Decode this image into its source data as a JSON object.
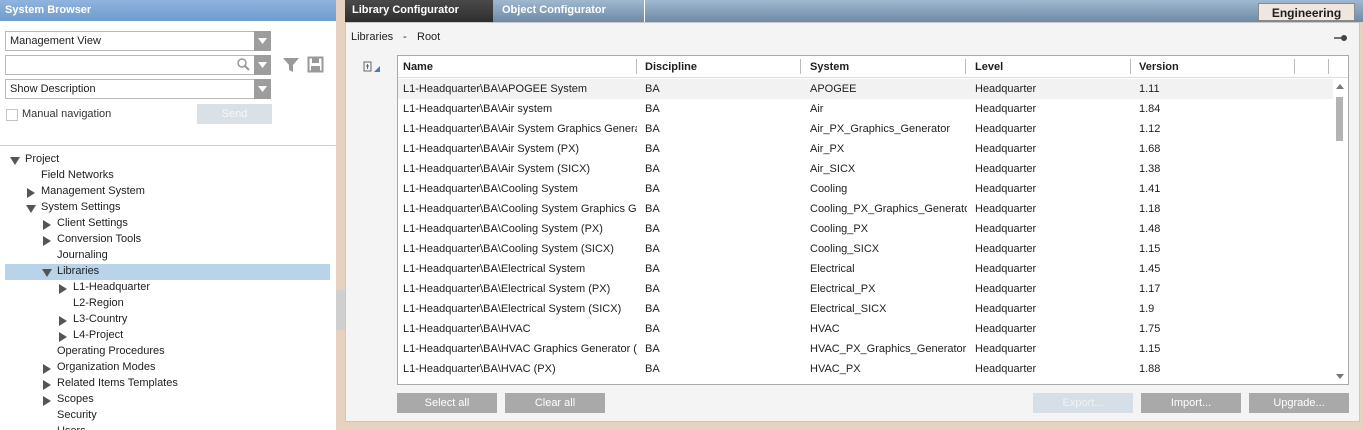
{
  "left_panel": {
    "title": "System Browser",
    "view_select": "Management View",
    "description_select": "Show Description",
    "manual_navigation": "Manual navigation",
    "send_button": "Send",
    "tree": {
      "label": "Project",
      "expanded": true,
      "children": [
        {
          "label": "Field Networks"
        },
        {
          "label": "Management System",
          "expanded": false
        },
        {
          "label": "System Settings",
          "expanded": true,
          "children": [
            {
              "label": "Client Settings",
              "expanded": false
            },
            {
              "label": "Conversion Tools",
              "expanded": false
            },
            {
              "label": "Journaling"
            },
            {
              "label": "Libraries",
              "expanded": true,
              "selected": true,
              "children": [
                {
                  "label": "L1-Headquarter",
                  "expanded": false
                },
                {
                  "label": "L2-Region"
                },
                {
                  "label": "L3-Country",
                  "expanded": false
                },
                {
                  "label": "L4-Project",
                  "expanded": false
                }
              ]
            },
            {
              "label": "Operating Procedures"
            },
            {
              "label": "Organization Modes",
              "expanded": false
            },
            {
              "label": "Related Items Templates",
              "expanded": false
            },
            {
              "label": "Scopes",
              "expanded": false
            },
            {
              "label": "Security"
            },
            {
              "label": "Users"
            }
          ]
        }
      ]
    }
  },
  "tabs": [
    "Library Configurator",
    "Object Configurator"
  ],
  "mode": "Engineering",
  "breadcrumb": [
    "Libraries",
    "-",
    "Root"
  ],
  "table": {
    "columns": [
      "Name",
      "Discipline",
      "System",
      "Level",
      "Version"
    ],
    "rows": [
      [
        "L1-Headquarter\\BA\\APOGEE System",
        "BA",
        "APOGEE",
        "Headquarter",
        "1.11"
      ],
      [
        "L1-Headquarter\\BA\\Air system",
        "BA",
        "Air",
        "Headquarter",
        "1.84"
      ],
      [
        "L1-Headquarter\\BA\\Air System Graphics Genera",
        "BA",
        "Air_PX_Graphics_Generator",
        "Headquarter",
        "1.12"
      ],
      [
        "L1-Headquarter\\BA\\Air System (PX)",
        "BA",
        "Air_PX",
        "Headquarter",
        "1.68"
      ],
      [
        "L1-Headquarter\\BA\\Air System (SICX)",
        "BA",
        "Air_SICX",
        "Headquarter",
        "1.38"
      ],
      [
        "L1-Headquarter\\BA\\Cooling System",
        "BA",
        "Cooling",
        "Headquarter",
        "1.41"
      ],
      [
        "L1-Headquarter\\BA\\Cooling System Graphics G",
        "BA",
        "Cooling_PX_Graphics_Generator",
        "Headquarter",
        "1.18"
      ],
      [
        "L1-Headquarter\\BA\\Cooling System (PX)",
        "BA",
        "Cooling_PX",
        "Headquarter",
        "1.48"
      ],
      [
        "L1-Headquarter\\BA\\Cooling System (SICX)",
        "BA",
        "Cooling_SICX",
        "Headquarter",
        "1.15"
      ],
      [
        "L1-Headquarter\\BA\\Electrical System",
        "BA",
        "Electrical",
        "Headquarter",
        "1.45"
      ],
      [
        "L1-Headquarter\\BA\\Electrical System (PX)",
        "BA",
        "Electrical_PX",
        "Headquarter",
        "1.17"
      ],
      [
        "L1-Headquarter\\BA\\Electrical System (SICX)",
        "BA",
        "Electrical_SICX",
        "Headquarter",
        "1.9"
      ],
      [
        "L1-Headquarter\\BA\\HVAC",
        "BA",
        "HVAC",
        "Headquarter",
        "1.75"
      ],
      [
        "L1-Headquarter\\BA\\HVAC Graphics Generator (",
        "BA",
        "HVAC_PX_Graphics_Generator",
        "Headquarter",
        "1.15"
      ],
      [
        "L1-Headquarter\\BA\\HVAC (PX)",
        "BA",
        "HVAC_PX",
        "Headquarter",
        "1.88"
      ]
    ]
  },
  "buttons": [
    "Select all",
    "Clear all",
    "Export...",
    "Import...",
    "Upgrade..."
  ]
}
